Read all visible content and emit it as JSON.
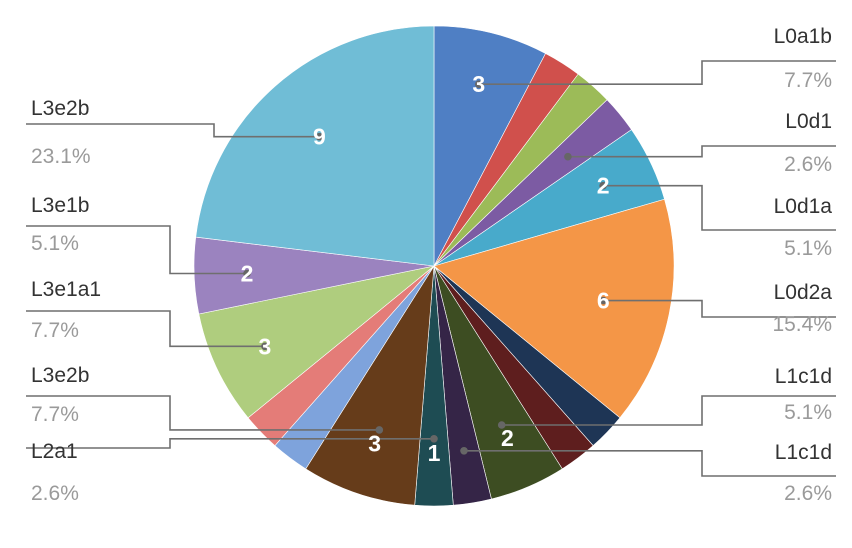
{
  "chart_data": {
    "type": "pie",
    "start_angle_deg": 0,
    "direction": "clockwise",
    "slices": [
      {
        "value": 3,
        "value_label": "3",
        "color": "#4f7fc4"
      },
      {
        "value": 1,
        "value_label": "",
        "color": "#d0504c"
      },
      {
        "value": 1,
        "value_label": "",
        "color": "#9cbb58"
      },
      {
        "value": 1,
        "value_label": "",
        "color": "#7c5ba3"
      },
      {
        "value": 2,
        "value_label": "2",
        "color": "#48aacb"
      },
      {
        "value": 6,
        "value_label": "6",
        "color": "#f49647"
      },
      {
        "value": 1,
        "value_label": "",
        "color": "#1e3555"
      },
      {
        "value": 1,
        "value_label": "",
        "color": "#5e1e1e"
      },
      {
        "value": 2,
        "value_label": "2",
        "color": "#3d4d22"
      },
      {
        "value": 1,
        "value_label": "",
        "color": "#352547"
      },
      {
        "value": 1,
        "value_label": "1",
        "color": "#1e4c53"
      },
      {
        "value": 3,
        "value_label": "3",
        "color": "#663c1a"
      },
      {
        "value": 1,
        "value_label": "",
        "color": "#7ea3dc"
      },
      {
        "value": 1,
        "value_label": "",
        "color": "#e47c78"
      },
      {
        "value": 3,
        "value_label": "3",
        "color": "#afcd7e"
      },
      {
        "value": 2,
        "value_label": "2",
        "color": "#9b83bf"
      },
      {
        "value": 9,
        "value_label": "9",
        "color": "#70bdd6"
      }
    ],
    "callouts": [
      {
        "name": "L0a1b",
        "percent": "7.7%",
        "side": "right",
        "slice": 0
      },
      {
        "name": "L0d1",
        "percent": "2.6%",
        "side": "right",
        "slice": 3
      },
      {
        "name": "L0d1a",
        "percent": "5.1%",
        "side": "right",
        "slice": 4
      },
      {
        "name": "L0d2a",
        "percent": "15.4%",
        "side": "right",
        "slice": 5
      },
      {
        "name": "L1c1d",
        "percent": "5.1%",
        "side": "right",
        "slice": 8
      },
      {
        "name": "L1c1d",
        "percent": "2.6%",
        "side": "right",
        "slice": 9
      },
      {
        "name": "L3e2b",
        "percent": "23.1%",
        "side": "left",
        "slice": 16
      },
      {
        "name": "L3e1b",
        "percent": "5.1%",
        "side": "left",
        "slice": 15
      },
      {
        "name": "L3e1a1",
        "percent": "7.7%",
        "side": "left",
        "slice": 14
      },
      {
        "name": "L3e2b",
        "percent": "7.7%",
        "side": "left",
        "slice": 11
      },
      {
        "name": "L2a1",
        "percent": "2.6%",
        "side": "left",
        "slice": 10
      }
    ]
  }
}
